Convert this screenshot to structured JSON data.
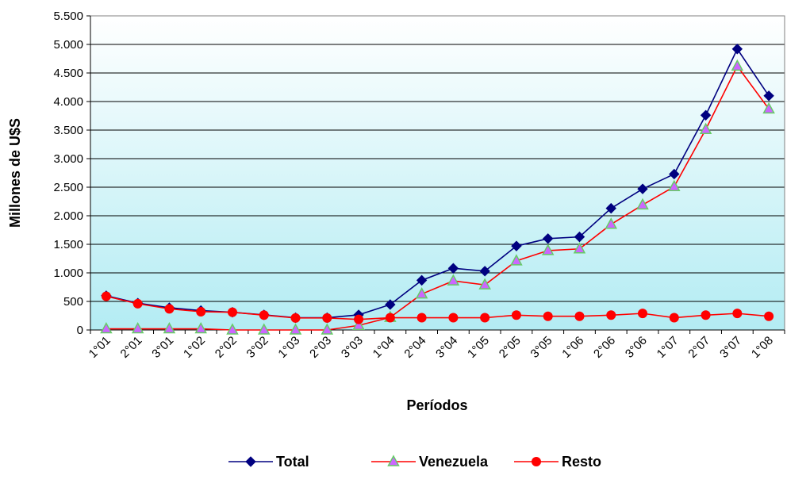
{
  "chart_data": {
    "type": "line",
    "title": "",
    "xlabel": "Períodos",
    "ylabel": "Millones de U$S",
    "ylim": [
      0,
      5500
    ],
    "yticks": [
      {
        "value": 0,
        "label": "0"
      },
      {
        "value": 500,
        "label": "500"
      },
      {
        "value": 1000,
        "label": "1.000"
      },
      {
        "value": 1500,
        "label": "1.500"
      },
      {
        "value": 2000,
        "label": "2.000"
      },
      {
        "value": 2500,
        "label": "2.500"
      },
      {
        "value": 3000,
        "label": "3.000"
      },
      {
        "value": 3500,
        "label": "3.500"
      },
      {
        "value": 4000,
        "label": "4.000"
      },
      {
        "value": 4500,
        "label": "4.500"
      },
      {
        "value": 5000,
        "label": "5.000"
      },
      {
        "value": 5500,
        "label": "5.500"
      }
    ],
    "categories": [
      "1°01",
      "2°01",
      "3°01",
      "1°02",
      "2°02",
      "3°02",
      "1°03",
      "2°03",
      "3°03",
      "1°04",
      "2°04",
      "3°04",
      "1°05",
      "2°05",
      "3°05",
      "1°06",
      "2°06",
      "3°06",
      "1°07",
      "2°07",
      "3°07",
      "1°08"
    ],
    "grid": true,
    "plot_background": "gradient white to light cyan",
    "legend_position": "bottom",
    "series": [
      {
        "name": "Total",
        "color": "#000080",
        "marker": "diamond",
        "values": [
          600,
          470,
          390,
          340,
          310,
          265,
          215,
          215,
          265,
          445,
          870,
          1080,
          1030,
          1470,
          1600,
          1630,
          2130,
          2470,
          2730,
          3760,
          4920,
          4100
        ]
      },
      {
        "name": "Venezuela",
        "color": "#ff0000",
        "marker": "triangle",
        "marker_fill": "#cc66ff",
        "values": [
          20,
          20,
          20,
          20,
          0,
          0,
          0,
          0,
          80,
          220,
          630,
          860,
          790,
          1210,
          1390,
          1420,
          1850,
          2190,
          2510,
          3510,
          4620,
          3870
        ]
      },
      {
        "name": "Resto",
        "color": "#ff0000",
        "marker": "circle",
        "values": [
          590,
          460,
          370,
          320,
          310,
          260,
          210,
          210,
          185,
          215,
          215,
          215,
          215,
          260,
          240,
          240,
          260,
          290,
          215,
          260,
          290,
          240
        ]
      }
    ]
  }
}
